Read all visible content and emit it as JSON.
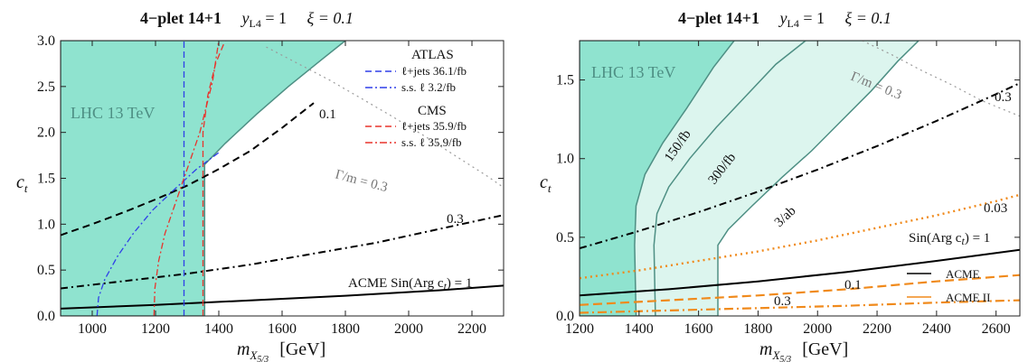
{
  "chart_data": [
    {
      "type": "line",
      "title_parts": {
        "lead": "4−plet  14+1",
        "y": "y",
        "y_sub": "L4",
        "y_val": " = 1",
        "xi": "ξ = 0.1"
      },
      "xlabel": {
        "symbol": "m",
        "sub": "X",
        "subsub": "5/3",
        "unit": "[GeV]"
      },
      "ylabel": {
        "symbol": "c",
        "sub": "t"
      },
      "xlim": [
        900,
        2300
      ],
      "ylim": [
        0,
        3.0
      ],
      "xticks": [
        "1000",
        "1200",
        "1400",
        "1600",
        "1800",
        "2000",
        "2200"
      ],
      "xtick_vals": [
        1000,
        1200,
        1400,
        1600,
        1800,
        2000,
        2200
      ],
      "yticks": [
        "0.0",
        "0.5",
        "1.0",
        "1.5",
        "2.0",
        "2.5",
        "3.0"
      ],
      "ytick_vals": [
        0,
        0.5,
        1.0,
        1.5,
        2.0,
        2.5,
        3.0
      ],
      "region_label": "LHC 13 TeV",
      "legend": {
        "atlas_title": "ATLAS",
        "atlas_items": [
          "ℓ+jets  36.1/fb",
          "s.s. ℓ  3.2/fb"
        ],
        "cms_title": "CMS",
        "cms_items": [
          "ℓ+jets  35.9/fb",
          "s.s. ℓ  35.9/fb"
        ]
      },
      "annotations": {
        "c01": "0.1",
        "c03": "0.3",
        "gamma": "Γ/m = 0.3",
        "acme": "ACME Sin(Arg c",
        "acme_sub": "t",
        "acme_end": ") = 1"
      },
      "series": [
        {
          "key": "excluded",
          "x": [
            900,
            1355,
            1355,
            1420,
            1520,
            1620,
            1720,
            1800,
            900
          ],
          "y": [
            0,
            0,
            1.65,
            1.88,
            2.2,
            2.5,
            2.78,
            3.0,
            3.0
          ]
        },
        {
          "key": "acme",
          "x": [
            900,
            1200,
            1500,
            1800,
            2100,
            2300
          ],
          "y": [
            0.08,
            0.12,
            0.17,
            0.22,
            0.28,
            0.33
          ]
        },
        {
          "key": "c03",
          "x": [
            900,
            1100,
            1300,
            1500,
            1700,
            1900,
            2100,
            2300
          ],
          "y": [
            0.3,
            0.38,
            0.46,
            0.56,
            0.68,
            0.8,
            0.95,
            1.1
          ]
        },
        {
          "key": "c01",
          "x": [
            900,
            1000,
            1100,
            1200,
            1300,
            1400,
            1500,
            1600,
            1700
          ],
          "y": [
            0.88,
            1.0,
            1.13,
            1.27,
            1.42,
            1.6,
            1.8,
            2.05,
            2.32
          ]
        },
        {
          "key": "gamma",
          "x": [
            1550,
            1650,
            1750,
            1850,
            1950,
            2050,
            2150,
            2250,
            2300
          ],
          "y": [
            2.93,
            2.75,
            2.57,
            2.37,
            2.17,
            1.96,
            1.74,
            1.52,
            1.4
          ]
        },
        {
          "key": "atlas_lj",
          "x": [
            1290,
            1290
          ],
          "y": [
            0,
            3.0
          ]
        },
        {
          "key": "atlas_ss",
          "x": [
            1015,
            1020,
            1040,
            1080,
            1130,
            1190,
            1260,
            1330,
            1400
          ],
          "y": [
            0,
            0.2,
            0.4,
            0.65,
            0.9,
            1.15,
            1.38,
            1.6,
            1.78
          ]
        },
        {
          "key": "cms_lj",
          "x": [
            1350,
            1350,
            1365,
            1390,
            1420
          ],
          "y": [
            0,
            2.0,
            2.4,
            2.75,
            3.0
          ]
        },
        {
          "key": "cms_ss",
          "x": [
            1195,
            1198,
            1210,
            1230,
            1260,
            1300,
            1340,
            1380,
            1400
          ],
          "y": [
            0,
            0.3,
            0.6,
            0.9,
            1.2,
            1.6,
            2.0,
            2.55,
            3.0
          ]
        }
      ]
    },
    {
      "type": "line",
      "title_parts": {
        "lead": "4−plet  14+1",
        "y": "y",
        "y_sub": "L4",
        "y_val": " = 1",
        "xi": "ξ = 0.1"
      },
      "xlabel": {
        "symbol": "m",
        "sub": "X",
        "subsub": "5/3",
        "unit": "[GeV]"
      },
      "ylabel": {
        "symbol": "c",
        "sub": "t"
      },
      "xlim": [
        1200,
        2680
      ],
      "ylim": [
        0,
        1.75
      ],
      "xticks": [
        "1200",
        "1400",
        "1600",
        "1800",
        "2000",
        "2200",
        "2400",
        "2600"
      ],
      "xtick_vals": [
        1200,
        1400,
        1600,
        1800,
        2000,
        2200,
        2400,
        2600
      ],
      "yticks": [
        "0.0",
        "0.5",
        "1.0",
        "1.5"
      ],
      "ytick_vals": [
        0,
        0.5,
        1.0,
        1.5
      ],
      "region_label": "LHC 13 TeV",
      "legend": {
        "items": [
          "ACME",
          "ACME II"
        ],
        "colors": [
          "#000000",
          "#f08a1c"
        ]
      },
      "annotations": {
        "lumi150": "150/fb",
        "lumi300": "300/fb",
        "lumi3": "3/ab",
        "gamma": "Γ/m = 0.3",
        "c03_black": "0.3",
        "c003": "0.03",
        "c01": "0.1",
        "c03": "0.3",
        "sin": "Sin(Arg c",
        "sin_sub": "t",
        "sin_end": ") = 1"
      },
      "series": [
        {
          "key": "r150",
          "x": [
            1390,
            1385,
            1390,
            1420,
            1480,
            1560,
            1650,
            1720
          ],
          "y": [
            0,
            0.45,
            0.7,
            0.9,
            1.1,
            1.32,
            1.58,
            1.75
          ]
        },
        {
          "key": "r300",
          "x": [
            1455,
            1450,
            1460,
            1500,
            1570,
            1660,
            1760,
            1860,
            1960
          ],
          "y": [
            0,
            0.45,
            0.65,
            0.82,
            1.0,
            1.2,
            1.4,
            1.6,
            1.75
          ]
        },
        {
          "key": "r3",
          "x": [
            1665,
            1665,
            1700,
            1780,
            1880,
            1980,
            2080,
            2180,
            2270,
            2340
          ],
          "y": [
            0,
            0.45,
            0.55,
            0.7,
            0.88,
            1.05,
            1.24,
            1.43,
            1.62,
            1.75
          ]
        },
        {
          "key": "acme",
          "x": [
            1200,
            1500,
            1800,
            2100,
            2400,
            2680
          ],
          "y": [
            0.13,
            0.17,
            0.22,
            0.28,
            0.35,
            0.42
          ]
        },
        {
          "key": "black03",
          "x": [
            1200,
            1400,
            1600,
            1800,
            2000,
            2200,
            2400,
            2600,
            2680
          ],
          "y": [
            0.43,
            0.54,
            0.66,
            0.79,
            0.93,
            1.08,
            1.24,
            1.41,
            1.48
          ]
        },
        {
          "key": "gamma",
          "x": [
            2150,
            2250,
            2350,
            2450,
            2550,
            2680
          ],
          "y": [
            1.75,
            1.66,
            1.56,
            1.47,
            1.37,
            1.27
          ]
        },
        {
          "key": "o003",
          "x": [
            1200,
            1400,
            1600,
            1800,
            2000,
            2200,
            2400,
            2600,
            2680
          ],
          "y": [
            0.24,
            0.29,
            0.35,
            0.41,
            0.48,
            0.56,
            0.64,
            0.73,
            0.77
          ]
        },
        {
          "key": "o01",
          "x": [
            1200,
            1500,
            1800,
            2100,
            2400,
            2680
          ],
          "y": [
            0.07,
            0.1,
            0.13,
            0.17,
            0.22,
            0.26
          ]
        },
        {
          "key": "o03",
          "x": [
            1200,
            1500,
            1800,
            2100,
            2400,
            2680
          ],
          "y": [
            0.02,
            0.035,
            0.05,
            0.065,
            0.085,
            0.1
          ]
        }
      ]
    }
  ],
  "colors": {
    "teal_dark": "#8fe3cf",
    "teal_light": "#dcf5ee",
    "teal_edge": "#4e8f84",
    "atlas": "#2f3fe8",
    "cms": "#e8332c",
    "orange": "#f08a1c",
    "gray": "#9a9a9a"
  }
}
